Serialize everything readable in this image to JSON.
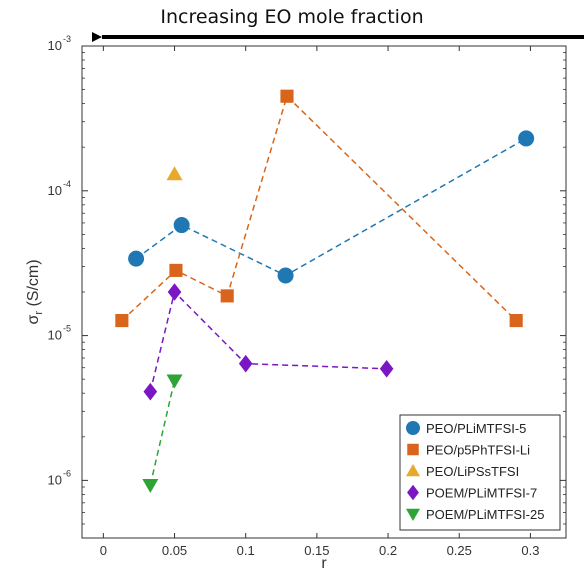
{
  "chart_data": {
    "type": "scatter",
    "annotation": "Increasing EO mole fraction",
    "xlabel": "r",
    "ylabel_main": "σ",
    "ylabel_sub": "r",
    "ylabel_unit": " (S/cm)",
    "xlim": [
      -0.015,
      0.325
    ],
    "ylim": [
      0.0004,
      -3.0
    ],
    "y_scale": "log",
    "ylim_data": [
      4e-07,
      0.001
    ],
    "xticks": [
      {
        "value": 0,
        "label": "0"
      },
      {
        "value": 0.05,
        "label": "0.05"
      },
      {
        "value": 0.1,
        "label": "0.1"
      },
      {
        "value": 0.15,
        "label": "0.15"
      },
      {
        "value": 0.2,
        "label": "0.2"
      },
      {
        "value": 0.25,
        "label": "0.25"
      },
      {
        "value": 0.3,
        "label": "0.3"
      }
    ],
    "yticks": [
      {
        "value": 1e-06,
        "base": "10",
        "exp": "-6"
      },
      {
        "value": 1e-05,
        "base": "10",
        "exp": "-5"
      },
      {
        "value": 0.0001,
        "base": "10",
        "exp": "-4"
      },
      {
        "value": 0.001,
        "base": "10",
        "exp": "-3"
      }
    ],
    "grid": false,
    "legend_position": "bottom-right",
    "series": [
      {
        "name": "PEO/PLiMTFSI-5",
        "color": "#1f77b4",
        "marker": "circle",
        "connected": true,
        "points": [
          [
            0.023,
            3.4e-05
          ],
          [
            0.055,
            5.8e-05
          ],
          [
            0.128,
            2.6e-05
          ],
          [
            0.297,
            0.00023
          ]
        ]
      },
      {
        "name": "PEO/p5PhTFSI-Li",
        "color": "#d9651c",
        "marker": "square",
        "connected": true,
        "points": [
          [
            0.013,
            1.27e-05
          ],
          [
            0.051,
            2.82e-05
          ],
          [
            0.087,
            1.88e-05
          ],
          [
            0.129,
            0.00045
          ],
          [
            0.29,
            1.27e-05
          ]
        ]
      },
      {
        "name": "PEO/LiPSsTFSI",
        "color": "#e8a92a",
        "marker": "triangle-up",
        "connected": false,
        "points": [
          [
            0.05,
            0.00013
          ]
        ]
      },
      {
        "name": "POEM/PLiMTFSI-7",
        "color": "#7b16c4",
        "marker": "diamond",
        "connected": true,
        "points": [
          [
            0.033,
            4.1e-06
          ],
          [
            0.05,
            2e-05
          ],
          [
            0.1,
            6.4e-06
          ],
          [
            0.199,
            5.9e-06
          ]
        ]
      },
      {
        "name": "POEM/PLiMTFSI-25",
        "color": "#2ea336",
        "marker": "triangle-down",
        "connected": true,
        "points": [
          [
            0.033,
            9.3e-07
          ],
          [
            0.05,
            4.9e-06
          ]
        ]
      }
    ]
  }
}
